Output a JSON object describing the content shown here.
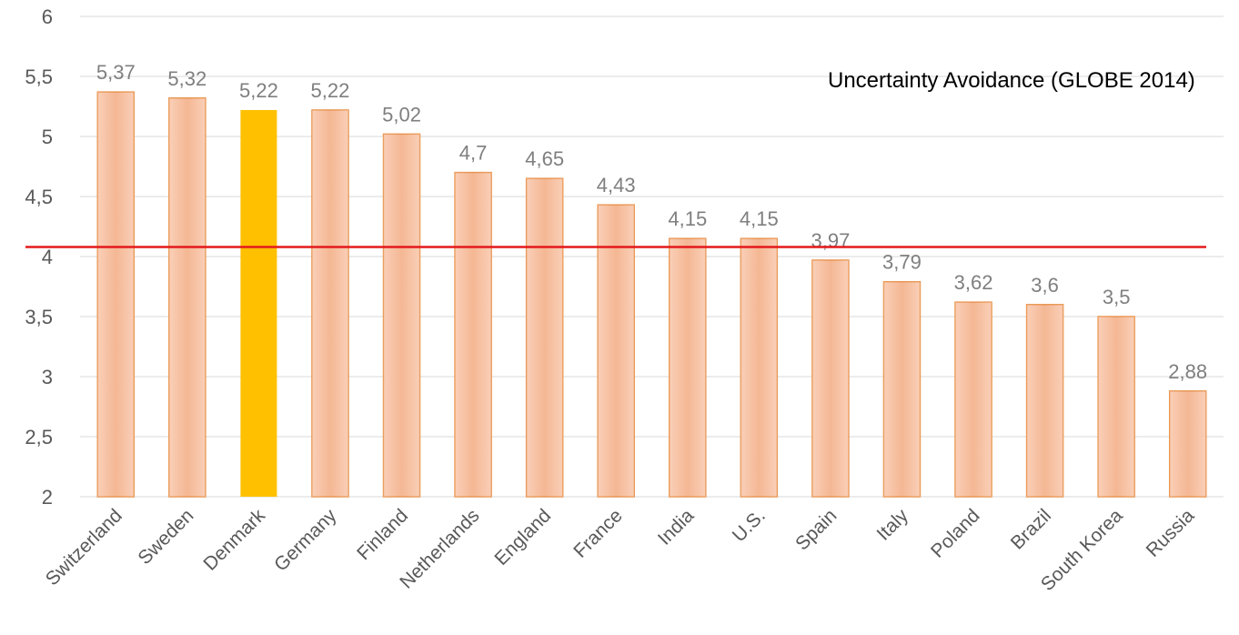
{
  "chart_data": {
    "type": "bar",
    "annotation": "Uncertainty Avoidance (GLOBE 2014)",
    "categories": [
      "Switzerland",
      "Sweden",
      "Denmark",
      "Germany",
      "Finland",
      "Netherlands",
      "England",
      "France",
      "India",
      "U.S.",
      "Spain",
      "Italy",
      "Poland",
      "Brazil",
      "South Korea",
      "Russia"
    ],
    "values": [
      5.37,
      5.32,
      5.22,
      5.22,
      5.02,
      4.7,
      4.65,
      4.43,
      4.15,
      4.15,
      3.97,
      3.79,
      3.62,
      3.6,
      3.5,
      2.88
    ],
    "value_labels": [
      "5,37",
      "5,32",
      "5,22",
      "5,22",
      "5,02",
      "4,7",
      "4,65",
      "4,43",
      "4,15",
      "4,15",
      "3,97",
      "3,79",
      "3,62",
      "3,6",
      "3,5",
      "2,88"
    ],
    "colors": [
      "#f8bfa0",
      "#f8bfa0",
      "#ffc000",
      "#f8bfa0",
      "#f8bfa0",
      "#f8bfa0",
      "#f8bfa0",
      "#f8bfa0",
      "#f8bfa0",
      "#f8bfa0",
      "#f8bfa0",
      "#f8bfa0",
      "#f8bfa0",
      "#f8bfa0",
      "#f8bfa0",
      "#f8bfa0"
    ],
    "edge_color": "#e8914a",
    "reference_line": {
      "value": 4.08,
      "color": "#e31a1c"
    },
    "ylim": [
      2,
      6
    ],
    "yticks": [
      2,
      {
        "value": 2.5,
        "label": "2,5"
      },
      3,
      {
        "value": 3.5,
        "label": "3,5"
      },
      4,
      {
        "value": 4.5,
        "label": "4,5"
      },
      5,
      {
        "value": 5.5,
        "label": "5,5"
      },
      6
    ],
    "grid": true
  }
}
